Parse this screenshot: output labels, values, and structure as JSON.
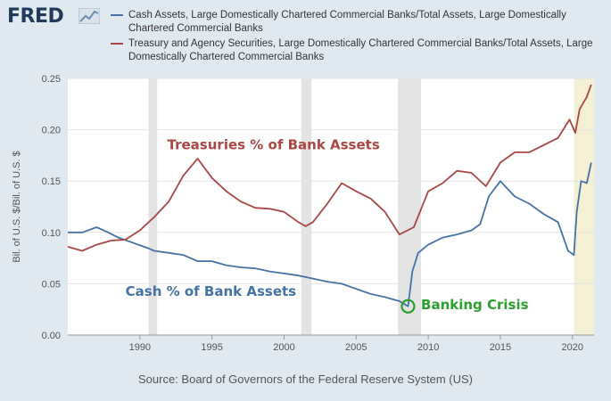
{
  "brand": {
    "logo_text": "FRED",
    "logo_mark": "fred-graph-icon"
  },
  "legend": [
    {
      "label": "Cash Assets, Large Domestically Chartered Commercial Banks/Total Assets, Large Domestically Chartered Commercial Banks",
      "color": "#4572a7"
    },
    {
      "label": "Treasury and Agency Securities, Large Domestically Chartered Commercial Banks/Total Assets, Large Domestically Chartered Commercial Banks",
      "color": "#aa4643"
    }
  ],
  "source": "Source: Board of Governors of the Federal Reserve System (US)",
  "chart_data": {
    "type": "line",
    "ylabel": "Bil. of U.S. $/Bil. of U.S. $",
    "xlabel": "",
    "xlim": [
      1985.0,
      2021.5
    ],
    "ylim": [
      0,
      0.25
    ],
    "x_ticks": [
      1990,
      1995,
      2000,
      2005,
      2010,
      2015,
      2020
    ],
    "y_ticks": [
      0.0,
      0.05,
      0.1,
      0.15,
      0.2,
      0.25
    ],
    "y_tick_labels": [
      "0.00",
      "0.05",
      "0.10",
      "0.15",
      "0.20",
      "0.25"
    ],
    "grid": "horizontal",
    "recessions": [
      [
        1990.6,
        1991.2
      ],
      [
        2001.2,
        2001.9
      ],
      [
        2007.9,
        2009.5
      ],
      [
        2020.1,
        2021.5
      ]
    ],
    "series": [
      {
        "name": "Cash Assets, Large Domestically Chartered Commercial Banks/Total Assets, Large Domestically Chartered Commercial Banks",
        "color": "#4572a7",
        "x": [
          1985.0,
          1986.0,
          1987.0,
          1987.8,
          1988.5,
          1989.5,
          1990.5,
          1991.0,
          1992.0,
          1993.0,
          1994.0,
          1995.0,
          1996.0,
          1997.0,
          1998.0,
          1999.0,
          2000.0,
          2001.0,
          2002.0,
          2003.0,
          2004.0,
          2005.0,
          2006.0,
          2007.0,
          2008.0,
          2008.6,
          2008.9,
          2009.3,
          2010.0,
          2011.0,
          2012.0,
          2013.0,
          2013.6,
          2014.2,
          2015.0,
          2016.0,
          2017.0,
          2018.0,
          2019.0,
          2019.7,
          2020.1,
          2020.3,
          2020.6,
          2021.0,
          2021.3
        ],
        "y": [
          0.1,
          0.1,
          0.105,
          0.1,
          0.095,
          0.09,
          0.085,
          0.082,
          0.08,
          0.078,
          0.072,
          0.072,
          0.068,
          0.066,
          0.065,
          0.062,
          0.06,
          0.058,
          0.055,
          0.052,
          0.05,
          0.045,
          0.04,
          0.037,
          0.033,
          0.028,
          0.062,
          0.08,
          0.088,
          0.095,
          0.098,
          0.102,
          0.108,
          0.135,
          0.15,
          0.135,
          0.128,
          0.118,
          0.11,
          0.082,
          0.078,
          0.12,
          0.15,
          0.148,
          0.168
        ]
      },
      {
        "name": "Treasury and Agency Securities, Large Domestically Chartered Commercial Banks/Total Assets, Large Domestically Chartered Commercial Banks",
        "color": "#aa4643",
        "x": [
          1985.0,
          1986.0,
          1987.0,
          1988.0,
          1989.0,
          1990.0,
          1991.0,
          1992.0,
          1993.0,
          1994.0,
          1995.0,
          1996.0,
          1997.0,
          1998.0,
          1999.0,
          2000.0,
          2001.0,
          2001.5,
          2002.0,
          2003.0,
          2004.0,
          2005.0,
          2006.0,
          2007.0,
          2008.0,
          2009.0,
          2010.0,
          2011.0,
          2012.0,
          2013.0,
          2014.0,
          2015.0,
          2016.0,
          2017.0,
          2018.0,
          2019.0,
          2019.8,
          2020.2,
          2020.5,
          2021.0,
          2021.3
        ],
        "y": [
          0.086,
          0.082,
          0.088,
          0.092,
          0.093,
          0.102,
          0.115,
          0.13,
          0.155,
          0.172,
          0.153,
          0.14,
          0.13,
          0.124,
          0.123,
          0.12,
          0.11,
          0.106,
          0.11,
          0.128,
          0.148,
          0.14,
          0.133,
          0.12,
          0.098,
          0.105,
          0.14,
          0.148,
          0.16,
          0.158,
          0.145,
          0.168,
          0.178,
          0.178,
          0.185,
          0.192,
          0.21,
          0.197,
          0.22,
          0.232,
          0.244
        ]
      }
    ],
    "annotations": [
      {
        "text": "Treasuries % of Bank Assets",
        "x": 1991.9,
        "y": 0.181,
        "color": "#aa4643"
      },
      {
        "text": "Cash % of Bank Assets",
        "x": 1989.0,
        "y": 0.038,
        "color": "#4572a7"
      },
      {
        "text": "Banking Crisis",
        "x": 2009.5,
        "y": 0.025,
        "color": "#2ca02c"
      }
    ],
    "markers": [
      {
        "x": 2008.6,
        "y": 0.028,
        "shape": "circle",
        "color": "#2ca02c"
      }
    ]
  }
}
